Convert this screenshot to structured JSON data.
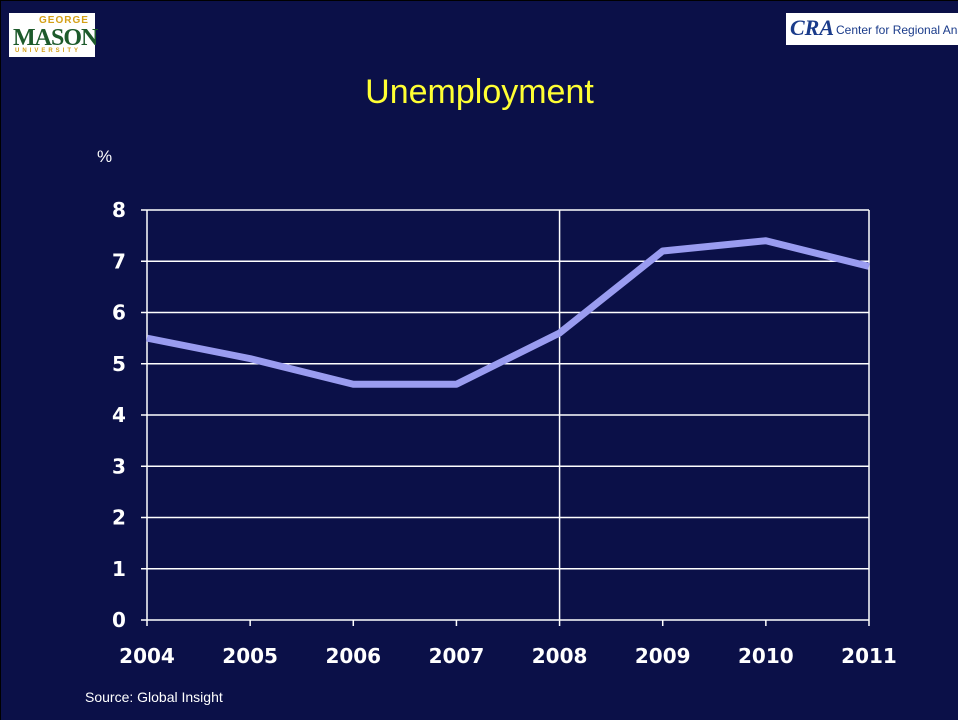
{
  "header": {
    "left_logo": {
      "top": "GEORGE",
      "main": "MASON",
      "bottom": "UNIVERSITY"
    },
    "right_logo": {
      "mark": "CRA",
      "text": "Center for Regional Analysis"
    }
  },
  "colors": {
    "background": "#0b1048",
    "title": "#ffff33",
    "line": "#9a9cf0",
    "grid": "#ffffff"
  },
  "footer": {
    "source": "Source: Global Insight"
  },
  "chart_data": {
    "type": "line",
    "title": "Unemployment",
    "ylabel": "%",
    "xlabel": "",
    "ylim": [
      0,
      8
    ],
    "yticks": [
      0,
      1,
      2,
      3,
      4,
      5,
      6,
      7,
      8
    ],
    "categories": [
      "2004",
      "2005",
      "2006",
      "2007",
      "2008",
      "2009",
      "2010",
      "2011"
    ],
    "series": [
      {
        "values": [
          5.5,
          5.1,
          4.6,
          4.6,
          5.6,
          7.2,
          7.4,
          6.9
        ]
      }
    ],
    "grid": true,
    "legend": "none"
  }
}
